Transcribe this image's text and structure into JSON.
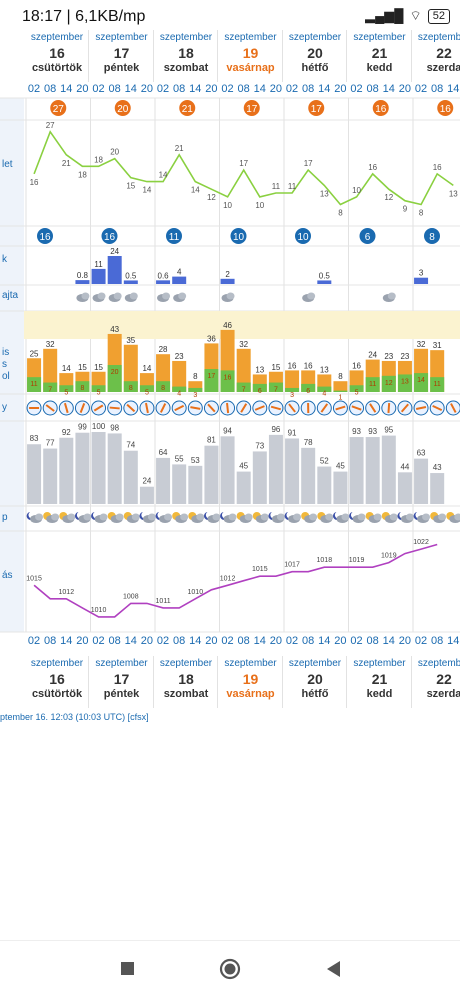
{
  "status": {
    "time": "18:17 | 6,1KB/mp",
    "battery": "52"
  },
  "days": [
    {
      "month": "szeptember",
      "day": "16",
      "weekday": "csütörtök",
      "sunday": false
    },
    {
      "month": "szeptember",
      "day": "17",
      "weekday": "péntek",
      "sunday": false
    },
    {
      "month": "szeptember",
      "day": "18",
      "weekday": "szombat",
      "sunday": false
    },
    {
      "month": "szeptember",
      "day": "19",
      "weekday": "vasárnap",
      "sunday": true
    },
    {
      "month": "szeptember",
      "day": "20",
      "weekday": "hétfő",
      "sunday": false
    },
    {
      "month": "szeptember",
      "day": "21",
      "weekday": "kedd",
      "sunday": false
    },
    {
      "month": "szeptember",
      "day": "22",
      "weekday": "szerda",
      "sunday": false
    }
  ],
  "hours": [
    "02",
    "08",
    "14",
    "20"
  ],
  "row_labels": [
    "let",
    "k",
    "ajta",
    "is",
    "s",
    "ol",
    "y",
    "p",
    "ás"
  ],
  "max_temps": [
    "27",
    "20",
    "21",
    "17",
    "17",
    "16",
    "16"
  ],
  "min_temps": [
    "16",
    "16",
    "11",
    "10",
    "10",
    "6",
    "8"
  ],
  "temperature_series": [
    16,
    27,
    21,
    18,
    18,
    20,
    15,
    14,
    14,
    21,
    14,
    12,
    10,
    17,
    10,
    11,
    11,
    17,
    13,
    8,
    10,
    16,
    12,
    9,
    8,
    16,
    13
  ],
  "precip_values": [
    "",
    "",
    "",
    "0.8",
    "11",
    "24",
    "0.5",
    "",
    "0.6",
    "4",
    "",
    "",
    "2",
    "",
    "",
    "",
    "",
    "",
    "0.5",
    "",
    "",
    "",
    "",
    "",
    "3",
    "",
    ""
  ],
  "precip_heights": [
    0,
    0,
    0,
    0.8,
    11,
    24,
    0.5,
    0,
    0.6,
    4,
    0,
    0,
    2,
    0,
    0,
    0,
    0,
    0,
    0.5,
    0,
    0,
    0,
    0,
    0,
    3,
    0,
    0
  ],
  "wind_total": [
    25,
    32,
    14,
    15,
    15,
    43,
    35,
    14,
    28,
    23,
    8,
    36,
    46,
    32,
    13,
    15,
    16,
    16,
    13,
    8,
    16,
    24,
    23,
    23,
    32,
    31
  ],
  "wind_green": [
    11,
    7,
    5,
    8,
    5,
    20,
    8,
    5,
    8,
    4,
    3,
    17,
    16,
    7,
    6,
    7,
    3,
    6,
    4,
    1,
    5,
    11,
    12,
    13,
    14,
    11
  ],
  "cloud_values": [
    83,
    77,
    92,
    99,
    100,
    98,
    74,
    24,
    64,
    55,
    53,
    81,
    94,
    45,
    73,
    96,
    91,
    78,
    52,
    45,
    93,
    93,
    95,
    44,
    63,
    43
  ],
  "pressure_values": [
    1015,
    1012,
    1012,
    1010,
    1008,
    1008,
    1011,
    1011,
    1010,
    1010,
    1012,
    1014,
    1015,
    1016,
    1017,
    1017,
    1018,
    1018,
    1019,
    1019,
    1019,
    1019,
    1020,
    1022,
    1023,
    1024
  ],
  "pressure_labels": [
    {
      "i": 0,
      "v": "1015"
    },
    {
      "i": 2,
      "v": "1012"
    },
    {
      "i": 4,
      "v": "1010"
    },
    {
      "i": 6,
      "v": "1008"
    },
    {
      "i": 8,
      "v": "1011"
    },
    {
      "i": 10,
      "v": "1010"
    },
    {
      "i": 12,
      "v": "1012"
    },
    {
      "i": 14,
      "v": "1015"
    },
    {
      "i": 16,
      "v": "1017"
    },
    {
      "i": 18,
      "v": "1018"
    },
    {
      "i": 20,
      "v": "1019"
    },
    {
      "i": 22,
      "v": "1019"
    },
    {
      "i": 24,
      "v": "1022"
    }
  ],
  "footer_text": "ptember 16. 12:03 (10:03 UTC)  [cfsx]",
  "colors": {
    "blue": "#1a6ab0",
    "orange": "#e8701a",
    "green": "#6cc04a",
    "gold": "#f0a030",
    "purple": "#b040c0",
    "grey": "#c8ccd4",
    "bluebar": "#4a6ad6"
  }
}
